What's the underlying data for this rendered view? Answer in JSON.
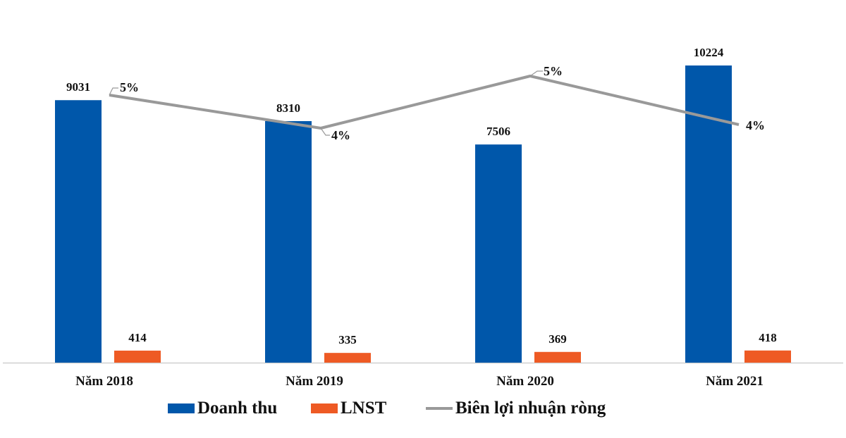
{
  "chart_data": {
    "type": "bar",
    "title": "",
    "xlabel": "",
    "ylabel": "",
    "grid": false,
    "legend_position": "bottom",
    "categories": [
      "Năm 2018",
      "Năm 2019",
      "Năm 2020",
      "Năm 2021"
    ],
    "series": [
      {
        "name": "Doanh thu",
        "type": "bar",
        "color": "#0057AA",
        "values": [
          9031,
          8310,
          7506,
          10224
        ],
        "labels": [
          "9031",
          "8310",
          "7506",
          "10224"
        ]
      },
      {
        "name": "LNST",
        "type": "bar",
        "color": "#EE5A24",
        "values": [
          414,
          335,
          369,
          418
        ],
        "labels": [
          "414",
          "335",
          "369",
          "418"
        ]
      },
      {
        "name": "Biên lợi nhuận ròng",
        "type": "line",
        "secondary_axis": true,
        "color": "#999999",
        "values": [
          5,
          4,
          5,
          4
        ],
        "labels": [
          "5%",
          "4%",
          "5%",
          "4%"
        ]
      }
    ]
  },
  "legend": {
    "items": [
      {
        "label": "Doanh thu",
        "color": "#0057AA",
        "kind": "bar"
      },
      {
        "label": "LNST",
        "color": "#EE5A24",
        "kind": "bar"
      },
      {
        "label": "Biên lợi nhuận ròng",
        "color": "#999999",
        "kind": "line"
      }
    ]
  },
  "colors": {
    "axis": "#D0D0D0",
    "text": "#111111"
  }
}
